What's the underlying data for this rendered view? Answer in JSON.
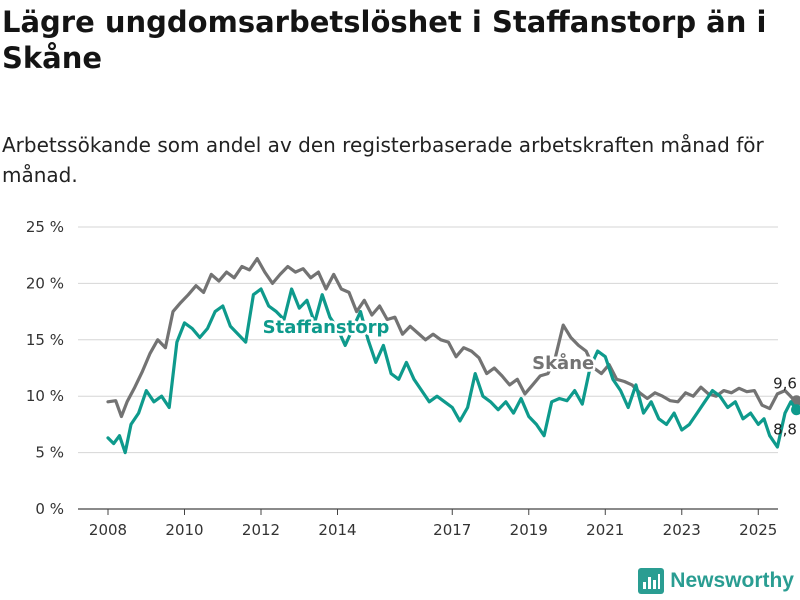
{
  "title": "Lägre ungdomsarbetslöshet i Staffanstorp än i Skåne",
  "subtitle": "Arbetssökande som andel av den registerbaserade arbetskraften månad för månad.",
  "branding": {
    "name": "Newsworthy",
    "logo_icon": "bar-chart-logo-icon"
  },
  "chart_data": {
    "type": "line",
    "ylim": [
      0,
      25
    ],
    "xlim": [
      2008.0,
      2026.3
    ],
    "y_ticks": [
      0,
      5,
      10,
      15,
      20,
      25
    ],
    "y_tick_labels": [
      "0 %",
      "5 %",
      "10 %",
      "15 %",
      "20 %",
      "25 %"
    ],
    "x_ticks": [
      2008,
      2010,
      2012,
      2014,
      2017,
      2019,
      2021,
      2023,
      2025
    ],
    "x_tick_labels": [
      "2008",
      "2010",
      "2012",
      "2014",
      "2017",
      "2019",
      "2021",
      "2023",
      "2025"
    ],
    "grid": true,
    "legend": "inline labels",
    "series": [
      {
        "name": "Skåne",
        "color": "#737373",
        "end_label": "9,6 %",
        "label_at": [
          2019.9,
          12.4
        ],
        "x": [
          2008.0,
          2008.2,
          2008.35,
          2008.5,
          2008.7,
          2008.9,
          2009.1,
          2009.3,
          2009.5,
          2009.7,
          2009.9,
          2010.1,
          2010.3,
          2010.5,
          2010.7,
          2010.9,
          2011.1,
          2011.3,
          2011.5,
          2011.7,
          2011.9,
          2012.1,
          2012.3,
          2012.5,
          2012.7,
          2012.9,
          2013.1,
          2013.3,
          2013.5,
          2013.7,
          2013.9,
          2014.1,
          2014.3,
          2014.5,
          2014.7,
          2014.9,
          2015.1,
          2015.3,
          2015.5,
          2015.7,
          2015.9,
          2016.1,
          2016.3,
          2016.5,
          2016.7,
          2016.9,
          2017.1,
          2017.3,
          2017.5,
          2017.7,
          2017.9,
          2018.1,
          2018.3,
          2018.5,
          2018.7,
          2018.9,
          2019.1,
          2019.3,
          2019.5,
          2019.7,
          2019.9,
          2020.1,
          2020.3,
          2020.5,
          2020.7,
          2020.9,
          2021.1,
          2021.3,
          2021.5,
          2021.7,
          2021.9,
          2022.1,
          2022.3,
          2022.5,
          2022.7,
          2022.9,
          2023.1,
          2023.3,
          2023.5,
          2023.7,
          2023.9,
          2024.1,
          2024.3,
          2024.5,
          2024.7,
          2024.9,
          2025.1,
          2025.3,
          2025.5,
          2025.7,
          2025.9,
          2026.0
        ],
        "values": [
          9.5,
          9.6,
          8.2,
          9.5,
          10.8,
          12.2,
          13.8,
          15.0,
          14.3,
          17.5,
          18.3,
          19.0,
          19.8,
          19.2,
          20.8,
          20.2,
          21.0,
          20.5,
          21.5,
          21.2,
          22.2,
          21.0,
          20.0,
          20.8,
          21.5,
          21.0,
          21.3,
          20.5,
          21.0,
          19.5,
          20.8,
          19.5,
          19.2,
          17.5,
          18.5,
          17.2,
          18.0,
          16.8,
          17.0,
          15.5,
          16.2,
          15.6,
          15.0,
          15.5,
          15.0,
          14.8,
          13.5,
          14.3,
          14.0,
          13.4,
          12.0,
          12.5,
          11.8,
          11.0,
          11.5,
          10.2,
          11.0,
          11.8,
          12.0,
          13.5,
          16.3,
          15.2,
          14.5,
          14.0,
          12.5,
          12.0,
          12.8,
          11.5,
          11.3,
          11.0,
          10.3,
          9.8,
          10.3,
          10.0,
          9.6,
          9.5,
          10.3,
          10.0,
          10.8,
          10.2,
          10.0,
          10.5,
          10.3,
          10.7,
          10.4,
          10.5,
          9.2,
          8.9,
          10.2,
          10.5,
          9.8,
          9.6
        ]
      },
      {
        "name": "Staffanstorp",
        "color": "#0e9a8c",
        "end_label": "8,8 %",
        "label_at": [
          2013.7,
          15.6
        ],
        "x": [
          2008.0,
          2008.15,
          2008.3,
          2008.45,
          2008.6,
          2008.8,
          2009.0,
          2009.2,
          2009.4,
          2009.6,
          2009.8,
          2010.0,
          2010.2,
          2010.4,
          2010.6,
          2010.8,
          2011.0,
          2011.2,
          2011.4,
          2011.6,
          2011.8,
          2012.0,
          2012.2,
          2012.4,
          2012.6,
          2012.8,
          2013.0,
          2013.2,
          2013.4,
          2013.6,
          2013.8,
          2014.0,
          2014.2,
          2014.4,
          2014.6,
          2014.8,
          2015.0,
          2015.2,
          2015.4,
          2015.6,
          2015.8,
          2016.0,
          2016.2,
          2016.4,
          2016.6,
          2016.8,
          2017.0,
          2017.2,
          2017.4,
          2017.6,
          2017.8,
          2018.0,
          2018.2,
          2018.4,
          2018.6,
          2018.8,
          2019.0,
          2019.2,
          2019.4,
          2019.6,
          2019.8,
          2020.0,
          2020.2,
          2020.4,
          2020.6,
          2020.8,
          2021.0,
          2021.2,
          2021.4,
          2021.6,
          2021.8,
          2022.0,
          2022.2,
          2022.4,
          2022.6,
          2022.8,
          2023.0,
          2023.2,
          2023.4,
          2023.6,
          2023.8,
          2024.0,
          2024.2,
          2024.4,
          2024.6,
          2024.8,
          2025.0,
          2025.15,
          2025.3,
          2025.5,
          2025.7,
          2025.85,
          2026.0
        ],
        "values": [
          6.3,
          5.8,
          6.5,
          5.0,
          7.5,
          8.5,
          10.5,
          9.5,
          10.0,
          9.0,
          14.8,
          16.5,
          16.0,
          15.2,
          16.0,
          17.5,
          18.0,
          16.2,
          15.5,
          14.8,
          19.0,
          19.5,
          18.0,
          17.5,
          16.8,
          19.5,
          17.8,
          18.5,
          16.5,
          19.0,
          17.0,
          16.0,
          14.5,
          16.0,
          17.5,
          15.0,
          13.0,
          14.5,
          12.0,
          11.5,
          13.0,
          11.5,
          10.5,
          9.5,
          10.0,
          9.5,
          9.0,
          7.8,
          9.0,
          12.0,
          10.0,
          9.5,
          8.8,
          9.5,
          8.5,
          9.8,
          8.2,
          7.5,
          6.5,
          9.5,
          9.8,
          9.6,
          10.5,
          9.3,
          12.5,
          14.0,
          13.5,
          11.5,
          10.5,
          9.0,
          11.0,
          8.5,
          9.5,
          8.0,
          7.5,
          8.5,
          7.0,
          7.5,
          8.5,
          9.5,
          10.5,
          10.0,
          9.0,
          9.5,
          8.0,
          8.5,
          7.5,
          8.0,
          6.5,
          5.5,
          8.5,
          9.5,
          8.8
        ]
      }
    ]
  }
}
